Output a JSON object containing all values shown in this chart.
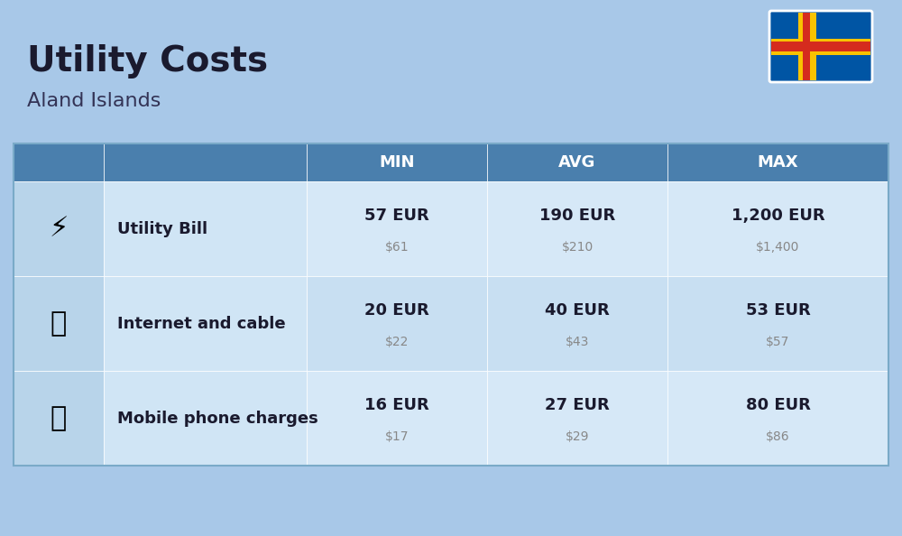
{
  "title": "Utility Costs",
  "subtitle": "Aland Islands",
  "background_color": "#a8c8e8",
  "header_color": "#4a7fad",
  "header_text_color": "#ffffff",
  "row_colors": [
    "#d6e8f7",
    "#c8dff2"
  ],
  "icon_col_color": "#b8d4ea",
  "label_col_color": "#d0e5f5",
  "col_headers": [
    "MIN",
    "AVG",
    "MAX"
  ],
  "rows": [
    {
      "label": "Utility Bill",
      "icon": "⚡",
      "min_eur": "57 EUR",
      "min_usd": "$61",
      "avg_eur": "190 EUR",
      "avg_usd": "$210",
      "max_eur": "1,200 EUR",
      "max_usd": "$1,400"
    },
    {
      "label": "Internet and cable",
      "icon": "📶",
      "min_eur": "20 EUR",
      "min_usd": "$22",
      "avg_eur": "40 EUR",
      "avg_usd": "$43",
      "max_eur": "53 EUR",
      "max_usd": "$57"
    },
    {
      "label": "Mobile phone charges",
      "icon": "📱",
      "min_eur": "16 EUR",
      "min_usd": "$17",
      "avg_eur": "27 EUR",
      "avg_usd": "$29",
      "max_eur": "80 EUR",
      "max_usd": "$86"
    }
  ],
  "flag_colors": {
    "blue": "#0055a4",
    "yellow": "#f9c300",
    "red": "#d52b1e"
  }
}
